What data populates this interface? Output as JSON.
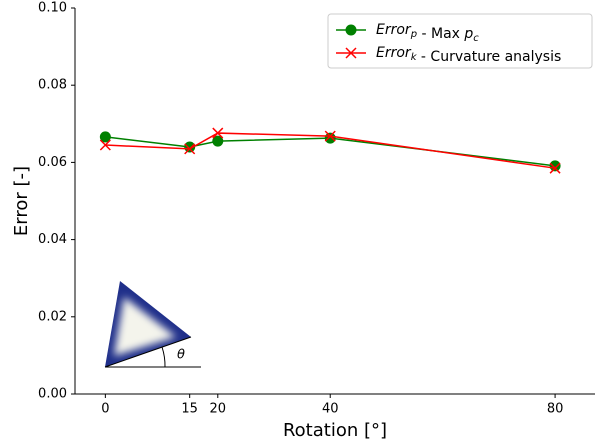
{
  "chart_data": {
    "type": "line",
    "x_label": "Rotation [°]",
    "y_label": "Error [-]",
    "x": [
      0,
      15,
      20,
      40,
      80
    ],
    "series": [
      {
        "name": "Error_p - Max p_c",
        "color": "#008000",
        "marker": "circle",
        "values": [
          0.0666,
          0.064,
          0.0655,
          0.0663,
          0.0591
        ]
      },
      {
        "name": "Error_k - Curvature analysis",
        "color": "#ff0000",
        "marker": "x",
        "values": [
          0.0645,
          0.0635,
          0.0676,
          0.0668,
          0.0585
        ]
      }
    ],
    "xlim": [
      -5.4,
      87.1
    ],
    "xticks": [
      0,
      15,
      20,
      40,
      80
    ],
    "ylim": [
      0,
      0.1
    ],
    "yticks": [
      {
        "value": 0,
        "label": "0.00"
      },
      {
        "value": 0.02,
        "label": "0.02"
      },
      {
        "value": 0.04,
        "label": "0.04"
      },
      {
        "value": 0.06,
        "label": "0.06"
      },
      {
        "value": 0.08,
        "label": "0.08"
      },
      {
        "value": 0.1,
        "label": "0.10"
      }
    ],
    "legend": "upper right",
    "annotation": "θ"
  }
}
